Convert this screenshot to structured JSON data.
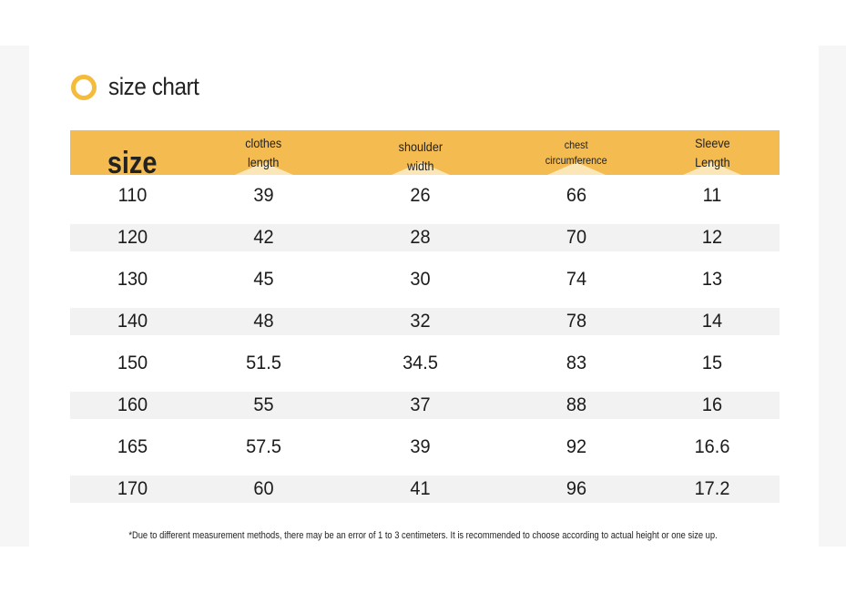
{
  "title": "size chart",
  "colors": {
    "accent": "#f4bb50",
    "ring": "#f4bb3c",
    "stripe": "#f2f2f2"
  },
  "table": {
    "headers": [
      {
        "line1": "size",
        "line2": ""
      },
      {
        "line1": "clothes",
        "line2": "length"
      },
      {
        "line1": "shoulder",
        "line2": "width"
      },
      {
        "line1": "chest",
        "line2": "circumference"
      },
      {
        "line1": "Sleeve",
        "line2": "Length"
      }
    ],
    "rows": [
      [
        "110",
        "39",
        "26",
        "66",
        "11"
      ],
      [
        "120",
        "42",
        "28",
        "70",
        "12"
      ],
      [
        "130",
        "45",
        "30",
        "74",
        "13"
      ],
      [
        "140",
        "48",
        "32",
        "78",
        "14"
      ],
      [
        "150",
        "51.5",
        "34.5",
        "83",
        "15"
      ],
      [
        "160",
        "55",
        "37",
        "88",
        "16"
      ],
      [
        "165",
        "57.5",
        "39",
        "92",
        "16.6"
      ],
      [
        "170",
        "60",
        "41",
        "96",
        "17.2"
      ]
    ]
  },
  "footnote": "*Due to different measurement methods, there may be an error of 1 to 3 centimeters. It is recommended to choose according to actual height or one size up."
}
